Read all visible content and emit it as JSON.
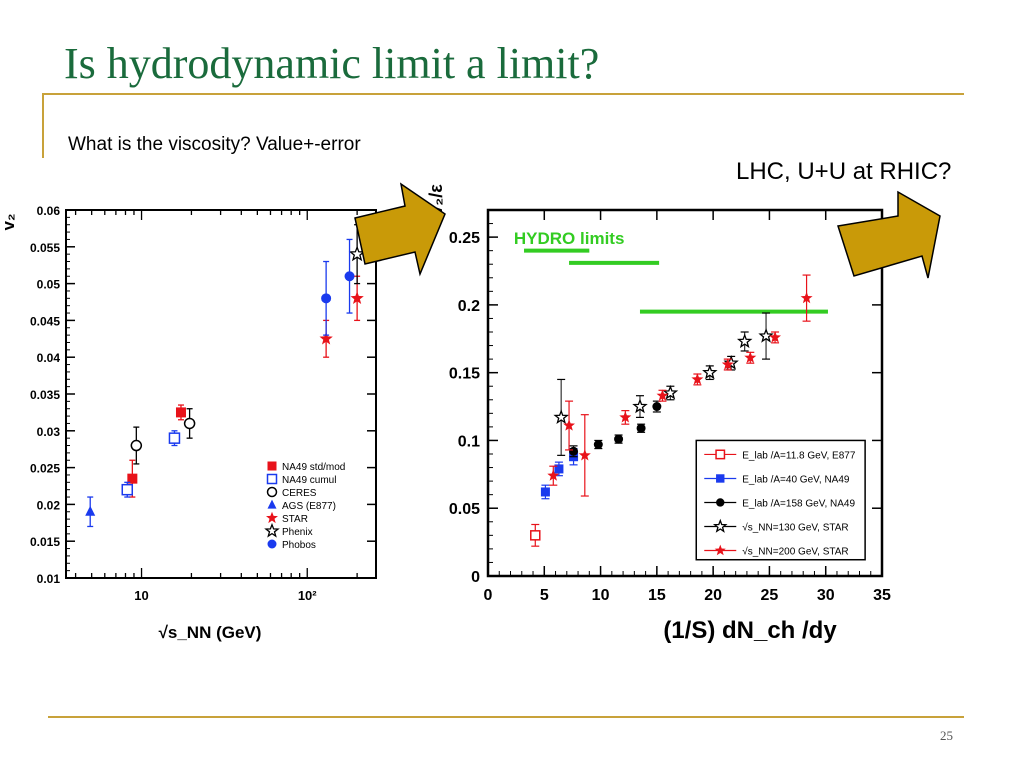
{
  "slide": {
    "title": "Is hydrodynamic limit a limit?",
    "subtitle": "What is the viscosity? Value+-error",
    "note": "LHC, U+U at RHIC?",
    "page_number": "25"
  },
  "colors": {
    "title": "#1a6b3c",
    "rule": "#c8a23a",
    "arrow_fill": "#c99a08",
    "hydro": "#33cc22",
    "red": "#e8121a",
    "blue": "#1a3aee"
  },
  "chart_data": [
    {
      "type": "scatter",
      "xscale": "log",
      "xlabel": "√s_NN (GeV)",
      "ylabel": "v₂",
      "xlim": [
        3.5,
        260
      ],
      "ylim": [
        0.01,
        0.06
      ],
      "xticks": [
        "10",
        "10²"
      ],
      "yticks": [
        "0.01",
        "0.015",
        "0.02",
        "0.025",
        "0.03",
        "0.035",
        "0.04",
        "0.045",
        "0.05",
        "0.055",
        "0.06"
      ],
      "legend_position": "bottom-right",
      "series": [
        {
          "name": "NA49 std/mod",
          "marker": "square-filled",
          "color": "#e8121a",
          "points": [
            {
              "x": 8.8,
              "y": 0.0235,
              "err": 0.0025
            },
            {
              "x": 17.3,
              "y": 0.0325,
              "err": 0.001
            }
          ]
        },
        {
          "name": "NA49 cumul",
          "marker": "square-open",
          "color": "#1a3aee",
          "points": [
            {
              "x": 8.2,
              "y": 0.022,
              "err": 0.001
            },
            {
              "x": 15.8,
              "y": 0.029,
              "err": 0.001
            }
          ]
        },
        {
          "name": "CERES",
          "marker": "circle-open",
          "color": "#000000",
          "points": [
            {
              "x": 9.3,
              "y": 0.028,
              "err": 0.0025
            },
            {
              "x": 19.5,
              "y": 0.031,
              "err": 0.002
            }
          ]
        },
        {
          "name": "AGS (E877)",
          "marker": "triangle-filled",
          "color": "#1a3aee",
          "points": [
            {
              "x": 4.9,
              "y": 0.019,
              "err": 0.002
            }
          ]
        },
        {
          "name": "STAR",
          "marker": "star-filled",
          "color": "#e8121a",
          "points": [
            {
              "x": 130,
              "y": 0.0425,
              "err": 0.0025
            },
            {
              "x": 200,
              "y": 0.048,
              "err": 0.003
            }
          ]
        },
        {
          "name": "Phenix",
          "marker": "star-open",
          "color": "#000000",
          "points": [
            {
              "x": 200,
              "y": 0.054,
              "err": 0.004
            }
          ]
        },
        {
          "name": "Phobos",
          "marker": "circle-filled",
          "color": "#1a3aee",
          "points": [
            {
              "x": 130,
              "y": 0.048,
              "err": 0.005
            },
            {
              "x": 180,
              "y": 0.051,
              "err": 0.005
            }
          ]
        }
      ]
    },
    {
      "type": "scatter",
      "xlabel": "(1/S) dN_ch /dy",
      "ylabel": "v₂/ε",
      "xlim": [
        0,
        35
      ],
      "ylim": [
        0,
        0.27
      ],
      "xticks": [
        "0",
        "5",
        "10",
        "15",
        "20",
        "25",
        "30",
        "35"
      ],
      "yticks": [
        "0",
        "0.05",
        "0.1",
        "0.15",
        "0.2",
        "0.25"
      ],
      "annotation": "HYDRO  limits",
      "hydro_limits": [
        {
          "x0": 3.2,
          "x1": 9.0,
          "y": 0.24
        },
        {
          "x0": 7.2,
          "x1": 15.2,
          "y": 0.231
        },
        {
          "x0": 13.5,
          "x1": 30.2,
          "y": 0.195
        }
      ],
      "legend_position": "bottom-right",
      "series": [
        {
          "name": "E_lab /A=11.8 GeV, E877",
          "marker": "square-open",
          "color": "#e8121a",
          "points": [
            {
              "x": 4.2,
              "y": 0.03,
              "err": 0.008
            }
          ]
        },
        {
          "name": "E_lab /A=40 GeV, NA49",
          "marker": "square-filled",
          "color": "#1a3aee",
          "points": [
            {
              "x": 5.1,
              "y": 0.062,
              "err": 0.005
            },
            {
              "x": 6.3,
              "y": 0.079,
              "err": 0.005
            },
            {
              "x": 7.6,
              "y": 0.088,
              "err": 0.006
            }
          ]
        },
        {
          "name": "E_lab /A=158 GeV, NA49",
          "marker": "circle-filled",
          "color": "#000000",
          "points": [
            {
              "x": 7.6,
              "y": 0.092,
              "err": 0.004
            },
            {
              "x": 9.8,
              "y": 0.097,
              "err": 0.003
            },
            {
              "x": 11.6,
              "y": 0.101,
              "err": 0.003
            },
            {
              "x": 13.6,
              "y": 0.109,
              "err": 0.003
            },
            {
              "x": 15.0,
              "y": 0.125,
              "err": 0.004
            }
          ]
        },
        {
          "name": "√s_NN=130 GeV, STAR",
          "marker": "star-open",
          "color": "#000000",
          "points": [
            {
              "x": 6.5,
              "y": 0.117,
              "err": 0.028
            },
            {
              "x": 13.5,
              "y": 0.125,
              "err": 0.008
            },
            {
              "x": 16.2,
              "y": 0.135,
              "err": 0.005
            },
            {
              "x": 19.7,
              "y": 0.15,
              "err": 0.005
            },
            {
              "x": 21.6,
              "y": 0.157,
              "err": 0.005
            },
            {
              "x": 22.8,
              "y": 0.173,
              "err": 0.007
            },
            {
              "x": 24.7,
              "y": 0.177,
              "err": 0.017
            }
          ]
        },
        {
          "name": "√s_NN=200 GeV, STAR",
          "marker": "star-filled",
          "color": "#e8121a",
          "points": [
            {
              "x": 5.8,
              "y": 0.074,
              "err": 0.007
            },
            {
              "x": 7.2,
              "y": 0.111,
              "err": 0.018
            },
            {
              "x": 8.6,
              "y": 0.089,
              "err": 0.03
            },
            {
              "x": 12.2,
              "y": 0.117,
              "err": 0.005
            },
            {
              "x": 15.5,
              "y": 0.133,
              "err": 0.004
            },
            {
              "x": 18.6,
              "y": 0.145,
              "err": 0.004
            },
            {
              "x": 21.3,
              "y": 0.156,
              "err": 0.004
            },
            {
              "x": 23.3,
              "y": 0.161,
              "err": 0.004
            },
            {
              "x": 25.5,
              "y": 0.176,
              "err": 0.004
            },
            {
              "x": 28.3,
              "y": 0.205,
              "err": 0.017
            }
          ]
        }
      ]
    }
  ]
}
